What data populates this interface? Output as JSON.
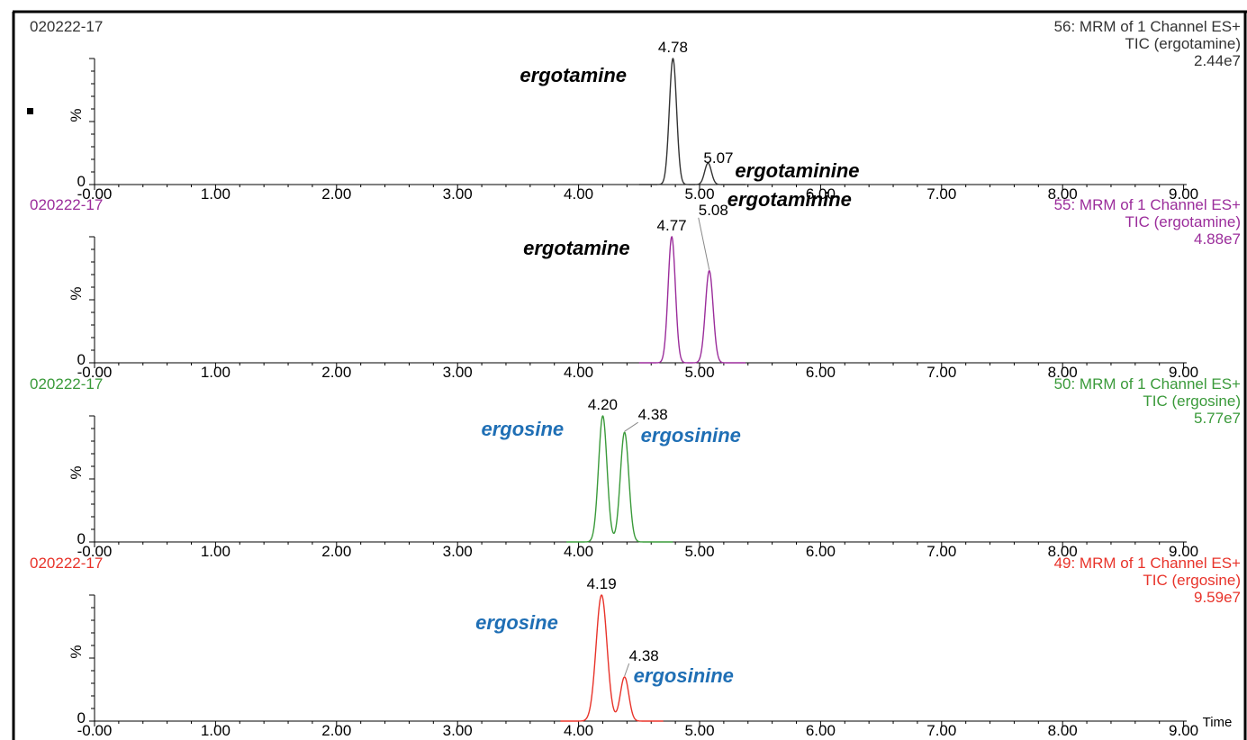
{
  "chart_data": [
    {
      "type": "line",
      "sample_id": "020222-17",
      "channel": "56: MRM of 1 Channel ES+",
      "tic": "TIC (ergotamine)",
      "intensity": "2.44e7",
      "color": "#333333",
      "ylabel": "%",
      "y_zero_label": "0",
      "xlim": [
        -0.1,
        9.0
      ],
      "ylim": [
        0,
        100
      ],
      "x_ticks": [
        "-0.00",
        "1.00",
        "2.00",
        "3.00",
        "4.00",
        "5.00",
        "6.00",
        "7.00",
        "8.00",
        "9.00"
      ],
      "baseline_range": [
        4.5,
        5.38
      ],
      "peaks": [
        {
          "rt": 4.78,
          "rt_label": "4.78",
          "height": 100,
          "width": 0.03,
          "compound": "ergotamine",
          "compound_color": "#000000"
        },
        {
          "rt": 5.07,
          "rt_label": "5.07",
          "height": 17,
          "width": 0.028,
          "compound": "ergotaminine",
          "compound_color": "#000000"
        }
      ]
    },
    {
      "type": "line",
      "sample_id": "020222-17",
      "channel": "55: MRM of 1 Channel ES+",
      "tic": "TIC (ergotamine)",
      "intensity": "4.88e7",
      "color": "#9b2d9b",
      "ylabel": "%",
      "y_zero_label": "0",
      "xlim": [
        -0.1,
        9.0
      ],
      "ylim": [
        0,
        100
      ],
      "x_ticks": [
        "-0.00",
        "1.00",
        "2.00",
        "3.00",
        "4.00",
        "5.00",
        "6.00",
        "7.00",
        "8.00",
        "9.00"
      ],
      "baseline_range": [
        4.5,
        5.38
      ],
      "peaks": [
        {
          "rt": 4.77,
          "rt_label": "4.77",
          "height": 100,
          "width": 0.03,
          "compound": "ergotamine",
          "compound_color": "#000000"
        },
        {
          "rt": 5.08,
          "rt_label": "5.08",
          "height": 73,
          "width": 0.032,
          "compound": "ergotaminine",
          "compound_color": "#000000"
        }
      ]
    },
    {
      "type": "line",
      "sample_id": "020222-17",
      "channel": "50: MRM of 1 Channel ES+",
      "tic": "TIC (ergosine)",
      "intensity": "5.77e7",
      "color": "#3a9a3a",
      "ylabel": "%",
      "y_zero_label": "0",
      "xlim": [
        -0.1,
        9.0
      ],
      "ylim": [
        0,
        100
      ],
      "x_ticks": [
        "-0.00",
        "1.00",
        "2.00",
        "3.00",
        "4.00",
        "5.00",
        "6.00",
        "7.00",
        "8.00",
        "9.00"
      ],
      "baseline_range": [
        3.9,
        4.78
      ],
      "peaks": [
        {
          "rt": 4.2,
          "rt_label": "4.20",
          "height": 100,
          "width": 0.035,
          "compound": "ergosine",
          "compound_color": "#1f6fb5"
        },
        {
          "rt": 4.38,
          "rt_label": "4.38",
          "height": 87,
          "width": 0.035,
          "compound": "ergosinine",
          "compound_color": "#1f6fb5"
        }
      ]
    },
    {
      "type": "line",
      "sample_id": "020222-17",
      "channel": "49: MRM of 1 Channel ES+",
      "tic": "TIC (ergosine)",
      "intensity": "9.59e7",
      "color": "#e8332a",
      "ylabel": "%",
      "y_zero_label": "0",
      "xlabel": "Time",
      "xlim": [
        -0.1,
        9.0
      ],
      "ylim": [
        0,
        100
      ],
      "x_ticks": [
        "-0.00",
        "1.00",
        "2.00",
        "3.00",
        "4.00",
        "5.00",
        "6.00",
        "7.00",
        "8.00",
        "9.00"
      ],
      "baseline_range": [
        3.85,
        4.7
      ],
      "peaks": [
        {
          "rt": 4.19,
          "rt_label": "4.19",
          "height": 100,
          "width": 0.045,
          "compound": "ergosine",
          "compound_color": "#1f6fb5"
        },
        {
          "rt": 4.38,
          "rt_label": "4.38",
          "height": 35,
          "width": 0.035,
          "compound": "ergosinine",
          "compound_color": "#1f6fb5"
        }
      ]
    }
  ]
}
